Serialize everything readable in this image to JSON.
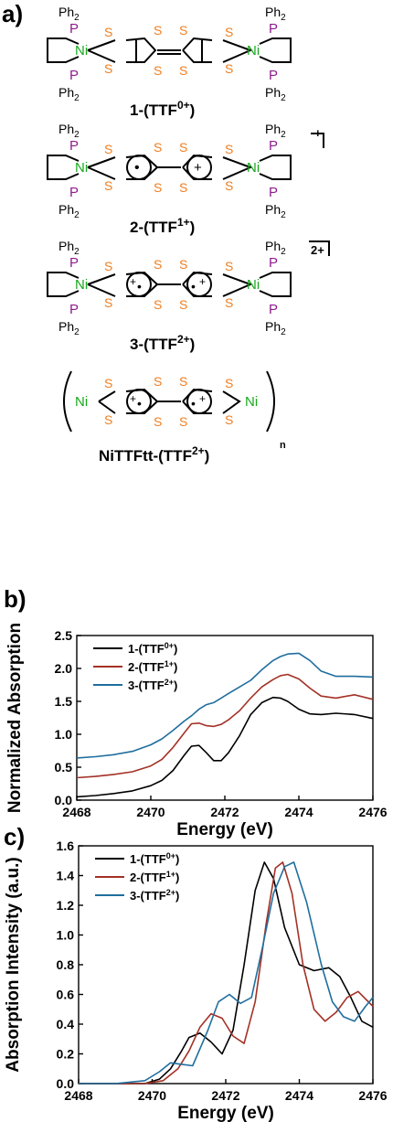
{
  "panels": {
    "a": "a)",
    "b": "b)",
    "c": "c)"
  },
  "structures": {
    "ph2": "Ph",
    "ph2_sub": "2",
    "atom_s": "S",
    "atom_p": "P",
    "atom_ni": "Ni",
    "mol1": {
      "name": "1-(TTF",
      "sup": "0+",
      "close": ")"
    },
    "mol2": {
      "name": "2-(TTF",
      "sup": "1+",
      "close": ")",
      "charge": "+"
    },
    "mol3": {
      "name": "3-(TTF",
      "sup": "2+",
      "close": ")",
      "charge": "2+"
    },
    "mol4": {
      "name": "NiTTFtt-(TTF",
      "sup": "2+",
      "close": ")",
      "repeat": "n"
    },
    "radical_plus": "+",
    "radical_dot": "•"
  },
  "colors": {
    "sulfur": "#ef7f22",
    "phosphorus": "#8e1c8e",
    "nickel": "#18a81c",
    "series1": "#000000",
    "series2": "#a33126",
    "series3": "#1f6e9e"
  },
  "chart_data": [
    {
      "type": "line",
      "panel": "b",
      "xlabel": "Energy (eV)",
      "ylabel": "Normalized Absorption",
      "xlim": [
        2468,
        2476
      ],
      "ylim": [
        0,
        2.5
      ],
      "xticks": [
        2468,
        2470,
        2472,
        2474,
        2476
      ],
      "yticks": [
        0.0,
        0.5,
        1.0,
        1.5,
        2.0,
        2.5
      ],
      "ytick_labels": [
        "0.0",
        "0.5",
        "1.0",
        "1.5",
        "2.0",
        "2.5"
      ],
      "legend": "top-left",
      "series": [
        {
          "name": "1-(TTF",
          "sup": "0+",
          "close": ")",
          "color": "#000000",
          "x": [
            2468,
            2468.5,
            2469,
            2469.5,
            2470,
            2470.3,
            2470.6,
            2470.9,
            2471.1,
            2471.3,
            2471.5,
            2471.7,
            2471.9,
            2472.1,
            2472.4,
            2472.7,
            2473.0,
            2473.3,
            2473.5,
            2473.7,
            2474.0,
            2474.3,
            2474.6,
            2475.0,
            2475.5,
            2476
          ],
          "y": [
            0.05,
            0.07,
            0.1,
            0.14,
            0.22,
            0.3,
            0.45,
            0.68,
            0.82,
            0.83,
            0.72,
            0.6,
            0.6,
            0.72,
            0.98,
            1.3,
            1.48,
            1.56,
            1.55,
            1.5,
            1.38,
            1.31,
            1.3,
            1.32,
            1.3,
            1.24
          ]
        },
        {
          "name": "2-(TTF",
          "sup": "1+",
          "close": ")",
          "color": "#a33126",
          "x": [
            2468,
            2468.5,
            2469,
            2469.5,
            2470,
            2470.3,
            2470.6,
            2470.9,
            2471.1,
            2471.3,
            2471.5,
            2471.7,
            2471.9,
            2472.1,
            2472.4,
            2472.7,
            2473.0,
            2473.3,
            2473.5,
            2473.7,
            2474.0,
            2474.3,
            2474.6,
            2475.0,
            2475.5,
            2476
          ],
          "y": [
            0.34,
            0.36,
            0.39,
            0.43,
            0.52,
            0.62,
            0.8,
            1.02,
            1.16,
            1.17,
            1.13,
            1.12,
            1.15,
            1.22,
            1.36,
            1.55,
            1.72,
            1.83,
            1.89,
            1.91,
            1.84,
            1.7,
            1.58,
            1.55,
            1.6,
            1.53
          ]
        },
        {
          "name": "3-(TTF",
          "sup": "2+",
          "close": ")",
          "color": "#1f6e9e",
          "x": [
            2468,
            2468.5,
            2469,
            2469.5,
            2470,
            2470.3,
            2470.6,
            2470.9,
            2471.1,
            2471.3,
            2471.5,
            2471.7,
            2471.9,
            2472.1,
            2472.4,
            2472.7,
            2473.0,
            2473.3,
            2473.5,
            2473.7,
            2474.0,
            2474.3,
            2474.6,
            2475.0,
            2475.5,
            2476
          ],
          "y": [
            0.64,
            0.66,
            0.69,
            0.74,
            0.84,
            0.93,
            1.06,
            1.2,
            1.28,
            1.38,
            1.45,
            1.48,
            1.55,
            1.62,
            1.72,
            1.82,
            1.98,
            2.12,
            2.18,
            2.22,
            2.23,
            2.12,
            1.96,
            1.88,
            1.88,
            1.87
          ]
        }
      ]
    },
    {
      "type": "line",
      "panel": "c",
      "xlabel": "Energy (eV)",
      "ylabel": "Absorption Intensity (a.u.)",
      "xlim": [
        2468,
        2476
      ],
      "ylim": [
        0,
        1.6
      ],
      "xticks": [
        2468,
        2470,
        2472,
        2474,
        2476
      ],
      "yticks": [
        0.0,
        0.2,
        0.4,
        0.6,
        0.8,
        1.0,
        1.2,
        1.4,
        1.6
      ],
      "ytick_labels": [
        "0.0",
        "0.2",
        "0.4",
        "0.6",
        "0.8",
        "1.0",
        "1.2",
        "1.4",
        "1.6"
      ],
      "legend": "top-left",
      "series": [
        {
          "name": "1-(TTF",
          "sup": "0+",
          "close": ")",
          "color": "#000000",
          "x": [
            2468,
            2469,
            2469.8,
            2470.2,
            2470.5,
            2470.8,
            2471.0,
            2471.3,
            2471.6,
            2471.9,
            2472.2,
            2472.5,
            2472.8,
            2473.05,
            2473.3,
            2473.6,
            2474.0,
            2474.4,
            2474.8,
            2475.1,
            2475.4,
            2475.7,
            2476
          ],
          "y": [
            0,
            0,
            0,
            0.03,
            0.1,
            0.22,
            0.31,
            0.34,
            0.28,
            0.2,
            0.36,
            0.8,
            1.3,
            1.49,
            1.38,
            1.05,
            0.8,
            0.76,
            0.78,
            0.72,
            0.58,
            0.42,
            0.38
          ]
        },
        {
          "name": "2-(TTF",
          "sup": "1+",
          "close": ")",
          "color": "#a33126",
          "x": [
            2468,
            2469,
            2469.8,
            2470.3,
            2470.7,
            2471.0,
            2471.3,
            2471.6,
            2471.9,
            2472.2,
            2472.5,
            2472.8,
            2473.1,
            2473.35,
            2473.55,
            2473.8,
            2474.1,
            2474.4,
            2474.7,
            2475.0,
            2475.3,
            2475.6,
            2476
          ],
          "y": [
            0,
            0,
            0,
            0.02,
            0.1,
            0.22,
            0.38,
            0.47,
            0.44,
            0.32,
            0.27,
            0.55,
            1.08,
            1.45,
            1.49,
            1.28,
            0.8,
            0.5,
            0.42,
            0.48,
            0.58,
            0.62,
            0.52
          ]
        },
        {
          "name": "3-(TTF",
          "sup": "2+",
          "close": ")",
          "color": "#1f6e9e",
          "x": [
            2468,
            2469,
            2469.8,
            2470.2,
            2470.5,
            2470.8,
            2471.1,
            2471.5,
            2471.8,
            2472.1,
            2472.4,
            2472.7,
            2473.0,
            2473.3,
            2473.6,
            2473.85,
            2474.2,
            2474.6,
            2474.9,
            2475.2,
            2475.5,
            2475.8,
            2476
          ],
          "y": [
            0,
            0,
            0.02,
            0.08,
            0.14,
            0.13,
            0.12,
            0.35,
            0.55,
            0.6,
            0.54,
            0.58,
            0.92,
            1.28,
            1.46,
            1.49,
            1.22,
            0.8,
            0.55,
            0.45,
            0.42,
            0.52,
            0.58
          ]
        }
      ]
    }
  ]
}
